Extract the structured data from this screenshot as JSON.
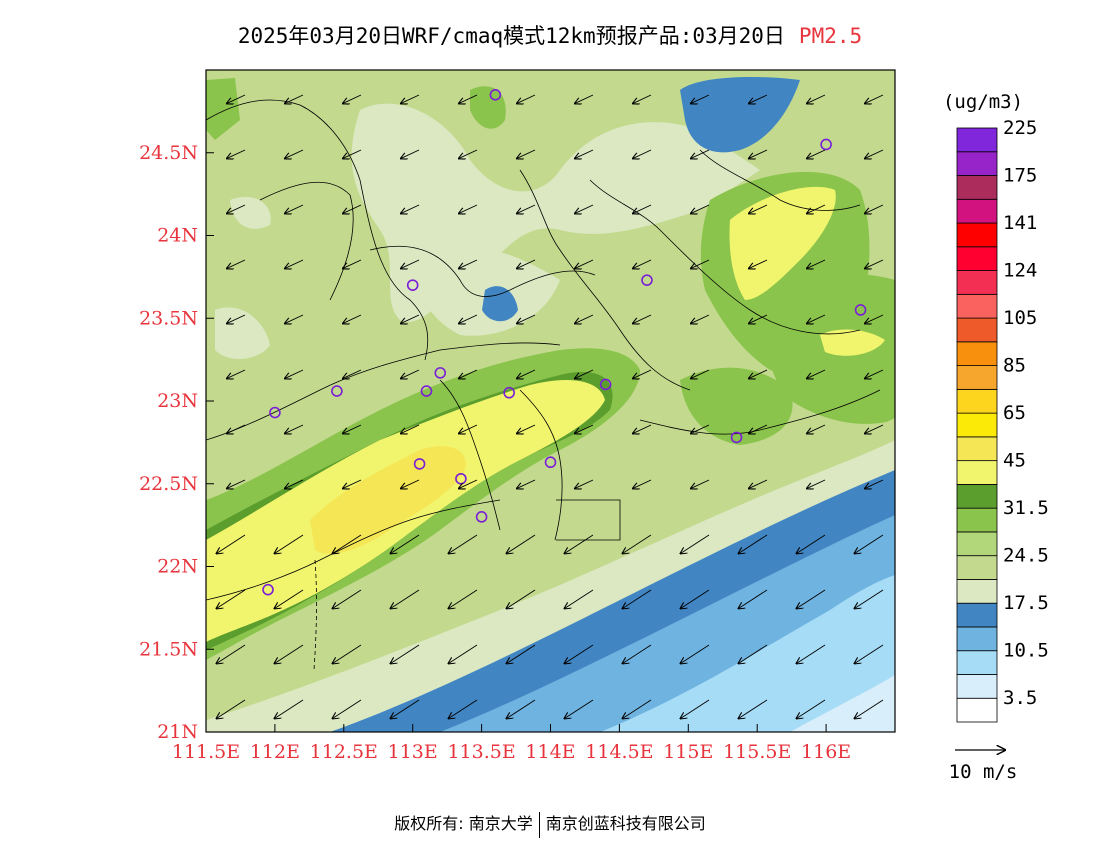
{
  "title": {
    "main": "2025年03月20日WRF/cmaq模式12km预报产品:03月20日",
    "pollutant": "PM2.5"
  },
  "map": {
    "lon_min": 111.5,
    "lon_max": 116.5,
    "lat_min": 21.0,
    "lat_max": 25.0,
    "x_ticks": [
      "111.5E",
      "112E",
      "112.5E",
      "113E",
      "113.5E",
      "114E",
      "114.5E",
      "115E",
      "115.5E",
      "116E"
    ],
    "y_ticks": [
      "21N",
      "21.5N",
      "22N",
      "22.5N",
      "23N",
      "23.5N",
      "24N",
      "24.5N"
    ],
    "stations": [
      {
        "lon": 113.6,
        "lat": 24.85
      },
      {
        "lon": 116.0,
        "lat": 24.55
      },
      {
        "lon": 113.0,
        "lat": 23.7
      },
      {
        "lon": 114.7,
        "lat": 23.73
      },
      {
        "lon": 116.25,
        "lat": 23.55
      },
      {
        "lon": 113.2,
        "lat": 23.17
      },
      {
        "lon": 113.1,
        "lat": 23.06
      },
      {
        "lon": 112.45,
        "lat": 23.06
      },
      {
        "lon": 113.7,
        "lat": 23.05
      },
      {
        "lon": 114.4,
        "lat": 23.1
      },
      {
        "lon": 112.0,
        "lat": 22.93
      },
      {
        "lon": 115.35,
        "lat": 22.78
      },
      {
        "lon": 113.05,
        "lat": 22.62
      },
      {
        "lon": 114.0,
        "lat": 22.63
      },
      {
        "lon": 113.35,
        "lat": 22.53
      },
      {
        "lon": 113.5,
        "lat": 22.3
      },
      {
        "lon": 111.95,
        "lat": 21.86
      }
    ]
  },
  "colorbar": {
    "unit": "(ug/m3)",
    "colors": [
      "#ffffff",
      "#d8eefa",
      "#a6dcf6",
      "#6fb3e0",
      "#4186c3",
      "#dbe8c2",
      "#c3da8e",
      "#b2d67a",
      "#8bc44c",
      "#5c9e2e",
      "#f1f56e",
      "#f5e655",
      "#fbe907",
      "#fdd51e",
      "#f6a62c",
      "#f8900d",
      "#ee5a2a",
      "#f9625e",
      "#f42f54",
      "#ff0030",
      "#fe0000",
      "#d2127e",
      "#ac2c5c",
      "#9724c9",
      "#8026db"
    ],
    "labels": [
      "3.5",
      "10.5",
      "17.5",
      "24.5",
      "31.5",
      "45",
      "65",
      "85",
      "105",
      "124",
      "141",
      "175",
      "225"
    ]
  },
  "wind_reference": {
    "label": "10 m/s"
  },
  "footer": {
    "copyright": "版权所有: 南京大学",
    "company": "南京创蓝科技有限公司"
  }
}
